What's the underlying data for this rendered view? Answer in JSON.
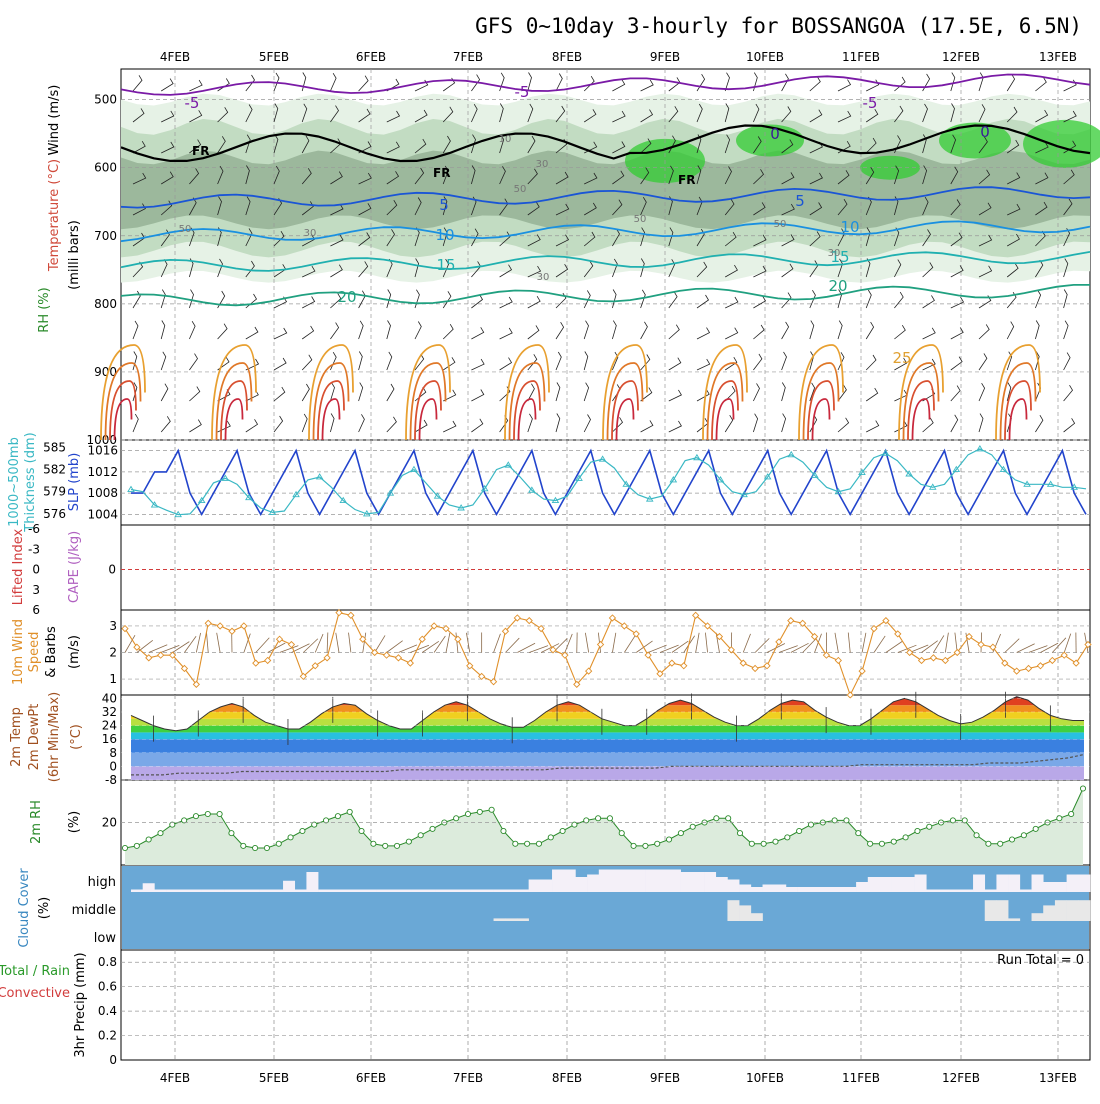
{
  "title": "GFS 0~10day 3-hourly for BOSSANGOA (17.5E, 6.5N)",
  "dates": [
    "4FEB",
    "5FEB",
    "6FEB",
    "7FEB",
    "8FEB",
    "9FEB",
    "10FEB",
    "11FEB",
    "12FEB",
    "13FEB"
  ],
  "colors": {
    "frame": "#000000",
    "grid": "#999999",
    "rh_light": "#e6f2e6",
    "rh_mid": "#c2dcc2",
    "rh_dark": "#9cb89c",
    "rh_green": "#33cc33",
    "thickness": "#3ab8c4",
    "slp": "#2244cc",
    "wind": "#e0902a",
    "barb": "#8a6a4a",
    "li_zero": "#d23c3c",
    "cloud": "#6aa8d6",
    "cloud_white": "#f4f0f8",
    "cloud_gray": "#e8e8e8",
    "rh2m_fill": "#dcebdc",
    "rh2m_line": "#2a8a2a"
  },
  "panels": {
    "upper_air": {
      "ylabels": [
        "Wind (m/s)",
        "Temperature (°C)",
        "RH (%)",
        "(milli bars)"
      ],
      "pressure_ticks": [
        "500",
        "600",
        "700",
        "800",
        "900",
        "1000"
      ],
      "contour_labels_temp": [
        "-5",
        "-5",
        "-5",
        "0",
        "0",
        "FR",
        "FR",
        "FR",
        "5",
        "5",
        "10",
        "10",
        "15",
        "15",
        "20",
        "20",
        "25"
      ],
      "rh_labels": [
        "50",
        "30",
        "10",
        "50",
        "30",
        "50",
        "50",
        "30",
        "30"
      ]
    },
    "thickness_slp": {
      "ylabels": [
        "1000~500mb",
        "Thickness (dm)",
        "SLP (mb)"
      ],
      "thickness_ticks": [
        "585",
        "582",
        "579",
        "576"
      ],
      "slp_ticks": [
        "1016",
        "1012",
        "1008",
        "1004"
      ]
    },
    "li_cape": {
      "ylabels": [
        "Lifted Index",
        "CAPE (J/kg)"
      ],
      "ticks": [
        "-6",
        "-3",
        "0",
        "3",
        "6"
      ]
    },
    "wind10m": {
      "ylabels": [
        "10m Wind",
        "Speed",
        "& Barbs",
        "(m/s)"
      ],
      "ticks": [
        "3",
        "2",
        "1"
      ]
    },
    "temp2m": {
      "ylabels": [
        "2m Temp",
        "2m DewPt",
        "(6hr Min/Max)",
        "(°C)"
      ],
      "ticks": [
        "40",
        "32",
        "24",
        "16",
        "8",
        "0",
        "-8"
      ]
    },
    "rh2m": {
      "ylabels": [
        "2m RH",
        "(%)"
      ],
      "ticks": [
        "20"
      ]
    },
    "cloud": {
      "ylabels": [
        "Cloud Cover",
        "(%)"
      ],
      "levels": [
        "high",
        "middle",
        "low"
      ]
    },
    "precip": {
      "ylabels": [
        "Total / Rain",
        "Convective",
        "3hr Precip (mm)"
      ],
      "ticks": [
        "0.8",
        "0.6",
        "0.4",
        "0.2",
        "0"
      ],
      "run_total": "Run Total = 0"
    }
  },
  "chart_data": [
    {
      "type": "line",
      "title": "1000~500mb Thickness and SLP",
      "series": [
        {
          "name": "SLP (mb)",
          "values": [
            1008,
            1008,
            1012,
            1012,
            1016,
            1008,
            1004,
            1008,
            1012,
            1016,
            1008,
            1004,
            1008,
            1012,
            1016,
            1008,
            1004,
            1008,
            1012,
            1016,
            1008,
            1004,
            1008,
            1012,
            1016,
            1008,
            1004,
            1008,
            1012,
            1016,
            1008,
            1004,
            1008,
            1012,
            1016,
            1008,
            1004,
            1008,
            1012,
            1016,
            1008,
            1004,
            1008,
            1012,
            1016,
            1008,
            1004,
            1008,
            1012,
            1016,
            1008,
            1004,
            1008,
            1012,
            1016,
            1008,
            1004,
            1008,
            1012,
            1016,
            1008,
            1004,
            1008,
            1012,
            1016,
            1008,
            1004,
            1008,
            1012,
            1016,
            1008,
            1004,
            1008,
            1012,
            1016,
            1008,
            1004,
            1008,
            1012,
            1016,
            1008,
            1004
          ]
        },
        {
          "name": "Thickness (dm)",
          "values": [
            579.3,
            579.0,
            577.2,
            576.5,
            575.9,
            576.0,
            577.8,
            580.2,
            580.8,
            580.0,
            578.2,
            576.8,
            576.2,
            576.4,
            578.6,
            580.6,
            581.0,
            579.6,
            577.8,
            576.6,
            576.0,
            576.2,
            578.8,
            581.2,
            582.0,
            580.2,
            578.4,
            577.2,
            576.8,
            577.2,
            579.4,
            582.0,
            582.6,
            581.0,
            579.2,
            578.0,
            577.8,
            578.4,
            580.8,
            583.0,
            583.4,
            582.2,
            580.0,
            578.6,
            578.0,
            578.4,
            580.6,
            583.2,
            583.6,
            582.6,
            580.6,
            579.0,
            578.6,
            579.0,
            581.0,
            583.4,
            584.0,
            583.0,
            581.2,
            579.6,
            579.0,
            579.4,
            581.6,
            583.6,
            584.2,
            583.2,
            581.4,
            580.0,
            579.6,
            580.0,
            582.0,
            584.0,
            584.8,
            584.0,
            582.0,
            580.6,
            580.0,
            580.0,
            580.0,
            579.6,
            579.6,
            579.4
          ]
        }
      ],
      "ylim_slp": [
        1002,
        1018
      ],
      "ylim_thickness": [
        574.5,
        586
      ]
    },
    {
      "type": "line",
      "title": "10m Wind Speed",
      "ylabel": "(m/s)",
      "ylim": [
        0.4,
        3.6
      ],
      "values": [
        2.9,
        2.2,
        1.8,
        1.9,
        1.9,
        1.4,
        0.8,
        3.1,
        3.0,
        2.8,
        3.0,
        1.6,
        1.7,
        2.5,
        2.3,
        1.1,
        1.5,
        1.8,
        3.5,
        3.4,
        2.5,
        2.0,
        1.9,
        1.8,
        1.6,
        2.5,
        3.0,
        2.9,
        2.5,
        1.5,
        1.1,
        0.9,
        2.8,
        3.3,
        3.2,
        2.9,
        2.1,
        1.9,
        0.8,
        1.3,
        2.3,
        3.3,
        3.0,
        2.7,
        1.9,
        1.2,
        1.6,
        1.5,
        3.4,
        3.0,
        2.6,
        2.1,
        1.6,
        1.4,
        1.5,
        2.4,
        3.2,
        3.1,
        2.6,
        1.9,
        1.7,
        0.4,
        1.3,
        2.9,
        3.2,
        2.7,
        2.0,
        1.7,
        1.8,
        1.7,
        2.0,
        2.6,
        2.3,
        2.2,
        1.6,
        1.3,
        1.4,
        1.5,
        1.7,
        1.9,
        1.6,
        2.3
      ]
    },
    {
      "type": "area",
      "title": "2m Temp (6hr Min/Max)",
      "ylabel": "(°C)",
      "ylim": [
        -8,
        42
      ],
      "values": [
        30,
        27,
        24,
        22,
        21,
        22,
        27,
        32,
        35,
        37,
        35,
        30,
        26,
        24,
        22,
        22,
        26,
        31,
        35,
        37,
        36,
        31,
        27,
        24,
        22,
        22,
        27,
        32,
        36,
        38,
        36,
        32,
        28,
        25,
        23,
        23,
        27,
        32,
        36,
        38,
        36,
        32,
        28,
        26,
        24,
        24,
        28,
        33,
        37,
        39,
        37,
        33,
        29,
        26,
        24,
        24,
        28,
        33,
        37,
        39,
        38,
        33,
        29,
        26,
        24,
        24,
        28,
        33,
        38,
        40,
        38,
        34,
        30,
        27,
        25,
        26,
        29,
        33,
        38,
        41,
        39,
        34,
        30,
        28,
        27,
        27
      ]
    },
    {
      "type": "line",
      "title": "2m DewPt",
      "ylabel": "(°C)",
      "values": [
        -5,
        -5,
        -5,
        -4,
        -4,
        -4,
        -4,
        -3,
        -3,
        -3,
        -3,
        -3,
        -3,
        -3,
        -3,
        -3,
        -3,
        -2,
        -2,
        -2,
        -2,
        -2,
        -2,
        -2,
        -2,
        -2,
        -2,
        -1,
        -1,
        -1,
        -1,
        -1,
        -1,
        -1,
        0,
        0,
        0,
        0,
        0,
        0,
        0,
        0,
        0,
        0,
        0,
        0,
        1,
        1,
        1,
        1,
        1,
        1,
        1,
        1,
        2,
        2,
        2,
        3,
        4,
        5,
        7
      ]
    },
    {
      "type": "area",
      "title": "2m RH",
      "ylabel": "(%)",
      "values": [
        8,
        9,
        12,
        15,
        19,
        21,
        23,
        24,
        24,
        15,
        9,
        8,
        8,
        10,
        13,
        16,
        19,
        21,
        23,
        25,
        16,
        10,
        9,
        9,
        11,
        14,
        17,
        20,
        22,
        24,
        25,
        26,
        16,
        10,
        10,
        10,
        13,
        16,
        19,
        21,
        22,
        22,
        15,
        9,
        9,
        10,
        12,
        15,
        18,
        20,
        22,
        22,
        15,
        10,
        10,
        11,
        13,
        16,
        19,
        20,
        21,
        21,
        15,
        10,
        10,
        11,
        13,
        16,
        18,
        20,
        21,
        21,
        14,
        10,
        10,
        12,
        14,
        17,
        20,
        22,
        24,
        36
      ]
    },
    {
      "type": "bar",
      "title": "Cloud Cover",
      "ylabel": "(%)",
      "series": [
        {
          "name": "high",
          "values": [
            0.1,
            0.35,
            0.1,
            0.1,
            0.1,
            0.1,
            0.1,
            0.1,
            0.1,
            0.1,
            0.1,
            0.1,
            0.1,
            0.45,
            0.1,
            0.8,
            0.1,
            0.1,
            0.1,
            0.1,
            0.1,
            0.1,
            0.1,
            0.1,
            0.1,
            0.1,
            0.1,
            0.1,
            0.1,
            0.1,
            0.1,
            0.1,
            0.1,
            0.1,
            0.5,
            0.5,
            0.9,
            0.9,
            0.6,
            0.7,
            0.9,
            0.9,
            0.9,
            0.9,
            0.9,
            0.9,
            0.9,
            0.8,
            0.8,
            0.8,
            0.6,
            0.5,
            0.3,
            0.2,
            0.3,
            0.3,
            0.2,
            0.2,
            0.2,
            0.2,
            0.2,
            0.2,
            0.4,
            0.6,
            0.6,
            0.6,
            0.6,
            0.7,
            0.1,
            0.1,
            0.1,
            0.1,
            0.7,
            0.1,
            0.7,
            0.7,
            0.1,
            0.7,
            0.4,
            0.4,
            0.7,
            0.7
          ]
        },
        {
          "name": "middle",
          "values": [
            0.0,
            0.0,
            0.0,
            0.0,
            0.0,
            0.0,
            0.0,
            0.0,
            0.0,
            0.0,
            0.0,
            0.0,
            0.0,
            0.0,
            0.0,
            0.0,
            0.0,
            0.0,
            0.0,
            0.0,
            0.0,
            0.0,
            0.0,
            0.0,
            0.0,
            0.0,
            0.0,
            0.0,
            0.0,
            0.0,
            0.0,
            0.1,
            0.1,
            0.1,
            0.0,
            0.0,
            0.0,
            0.0,
            0.0,
            0.0,
            0.0,
            0.0,
            0.0,
            0.0,
            0.0,
            0.0,
            0.0,
            0.0,
            0.0,
            0.0,
            0.0,
            0.8,
            0.6,
            0.3,
            0.0,
            0.0,
            0.0,
            0.0,
            0.0,
            0.0,
            0.0,
            0.0,
            0.0,
            0.0,
            0.0,
            0.0,
            0.0,
            0.0,
            0.0,
            0.0,
            0.0,
            0.0,
            0.0,
            0.8,
            0.8,
            0.1,
            0.0,
            0.3,
            0.6,
            0.8,
            0.8,
            0.8
          ]
        },
        {
          "name": "low",
          "values": [
            0.0,
            0.0,
            0.0,
            0.0,
            0.0,
            0.0,
            0.0,
            0.0,
            0.0,
            0.0,
            0.0,
            0.0,
            0.0,
            0.0,
            0.0,
            0.0,
            0.0,
            0.0,
            0.0,
            0.0,
            0.0,
            0.0,
            0.0,
            0.0,
            0.0,
            0.0,
            0.0,
            0.0,
            0.0,
            0.0,
            0.0,
            0.0,
            0.0,
            0.0,
            0.0,
            0.0,
            0.0,
            0.0,
            0.0,
            0.0,
            0.0,
            0.0,
            0.0,
            0.0,
            0.0,
            0.0,
            0.0,
            0.0,
            0.0,
            0.0,
            0.0,
            0.0,
            0.0,
            0.0,
            0.0,
            0.0,
            0.0,
            0.0,
            0.0,
            0.0,
            0.0,
            0.0,
            0.0,
            0.0,
            0.0,
            0.0,
            0.0,
            0.0,
            0.0,
            0.0,
            0.0,
            0.0,
            0.0,
            0.0,
            0.0,
            0.0,
            0.0,
            0.0,
            0.0,
            0.0,
            0.0,
            0.0
          ]
        }
      ]
    },
    {
      "type": "bar",
      "title": "3hr Precip (mm)",
      "ylim": [
        0,
        0.9
      ],
      "values": []
    }
  ]
}
